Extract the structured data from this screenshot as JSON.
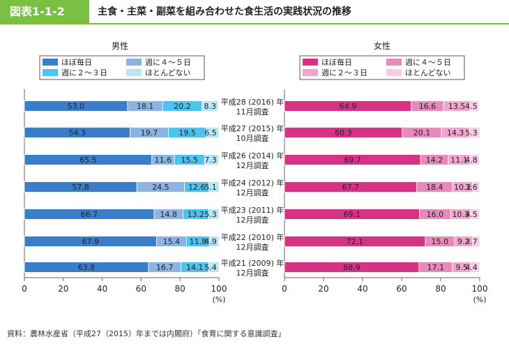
{
  "figure_label": "図表1-1-2",
  "figure_title": "主食・主菜・副菜を組み合わせた食生活の実践状況の推移",
  "source": "資料：農林水産省（平成27（2015）年までは内閣府）「食育に関する意識調査」",
  "colors": {
    "accent": "#7ac143",
    "male": [
      "#3a7dc9",
      "#8db3e2",
      "#4fc3f0",
      "#b8e6f8"
    ],
    "female": [
      "#d63384",
      "#e68ab9",
      "#f0a6cd",
      "#f7cde3"
    ]
  },
  "chart_data": [
    {
      "type": "bar",
      "orientation": "horizontal",
      "stacked": true,
      "title": "男性",
      "x_unit": "(%)",
      "xlim": [
        0,
        100
      ],
      "x_ticks": [
        0,
        20,
        40,
        60,
        80,
        100
      ],
      "legend": [
        "ほぼ毎日",
        "週に４～５日",
        "週に２～３日",
        "ほとんどない"
      ],
      "categories": [
        {
          "year": "平成28 (2016) 年",
          "month": "11月調査"
        },
        {
          "year": "平成27 (2015) 年",
          "month": "10月調査"
        },
        {
          "year": "平成26 (2014) 年",
          "month": "12月調査"
        },
        {
          "year": "平成24 (2012) 年",
          "month": "12月調査"
        },
        {
          "year": "平成23 (2011) 年",
          "month": "12月調査"
        },
        {
          "year": "平成22 (2010) 年",
          "month": "12月調査"
        },
        {
          "year": "平成21 (2009) 年",
          "month": "12月調査"
        }
      ],
      "series": [
        {
          "name": "ほぼ毎日",
          "values": [
            53.0,
            54.3,
            65.5,
            57.8,
            66.7,
            67.9,
            63.8
          ],
          "labels": [
            "53.0",
            "54.3",
            "65.5",
            "57.8",
            "66.7",
            "67.9",
            "63.8"
          ]
        },
        {
          "name": "週に４～５日",
          "values": [
            18.1,
            19.7,
            11.6,
            24.5,
            14.8,
            15.4,
            16.7
          ],
          "labels": [
            "18.1",
            "19.7",
            "11.6",
            "24.5",
            "14.8",
            "15.4",
            "16.7"
          ]
        },
        {
          "name": "週に２～３日",
          "values": [
            20.2,
            19.5,
            15.5,
            12.6,
            13.2,
            11.8,
            14.1
          ],
          "labels": [
            "20.2",
            "19.5",
            "15.5",
            "12.6",
            "13.2",
            "11.8",
            "14.1"
          ]
        },
        {
          "name": "ほとんどない",
          "values": [
            8.3,
            6.5,
            7.3,
            5.1,
            5.3,
            4.9,
            5.4
          ],
          "labels": [
            "8.3",
            "6.5",
            "7.3",
            "5.1",
            "5.3",
            "4.9",
            "5.4"
          ]
        }
      ]
    },
    {
      "type": "bar",
      "orientation": "horizontal",
      "stacked": true,
      "title": "女性",
      "x_unit": "(%)",
      "xlim": [
        0,
        100
      ],
      "x_ticks": [
        0,
        20,
        40,
        60,
        80,
        100
      ],
      "legend": [
        "ほぼ毎日",
        "週に４～５日",
        "週に２～３日",
        "ほとんどない"
      ],
      "series": [
        {
          "name": "ほぼ毎日",
          "values": [
            64.9,
            60.3,
            69.7,
            67.7,
            69.1,
            72.1,
            68.9
          ],
          "labels": [
            "64.9",
            "60.3",
            "69.7",
            "67.7",
            "69.1",
            "72.1",
            "68.9"
          ]
        },
        {
          "name": "週に４～５日",
          "values": [
            16.6,
            20.1,
            14.2,
            18.4,
            16.0,
            15.0,
            17.1
          ],
          "labels": [
            "16.6",
            "20.1",
            "14.2",
            "18.4",
            "16.0",
            "15.0",
            "17.1"
          ]
        },
        {
          "name": "週に２～３日",
          "values": [
            13.5,
            14.3,
            11.1,
            10.2,
            10.3,
            9.2,
            9.5
          ],
          "labels": [
            "13.5",
            "14.3",
            "11.1",
            "10.2",
            "10.3",
            "9.2",
            "9.5"
          ]
        },
        {
          "name": "ほとんどない",
          "values": [
            4.5,
            5.3,
            4.8,
            3.6,
            4.5,
            3.7,
            4.4
          ],
          "labels": [
            "4.5",
            "5.3",
            "4.8",
            "3.6",
            "4.5",
            "3.7",
            "4.4"
          ]
        }
      ]
    }
  ]
}
